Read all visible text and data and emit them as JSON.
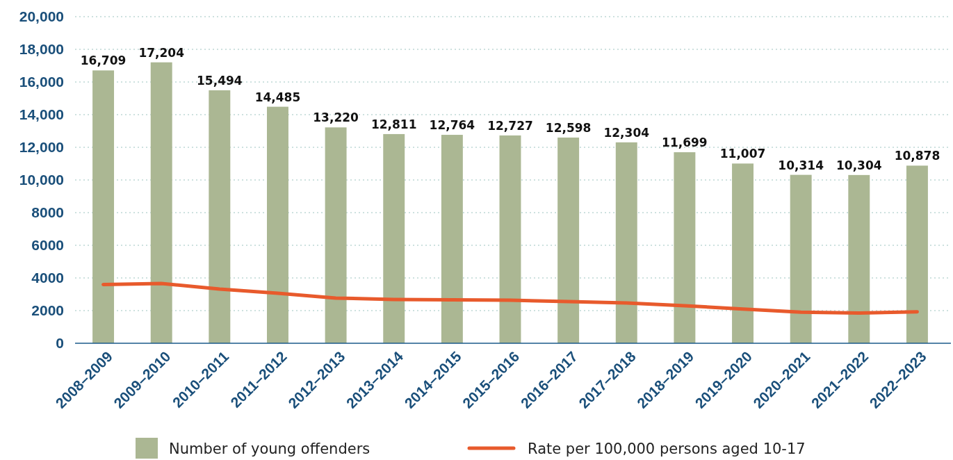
{
  "chart_data": {
    "type": "bar",
    "categories": [
      "2008–2009",
      "2009–2010",
      "2010–2011",
      "2011–2012",
      "2012–2013",
      "2013–2014",
      "2014–2015",
      "2015–2016",
      "2016–2017",
      "2017–2018",
      "2018–2019",
      "2019–2020",
      "2020–2021",
      "2021–2022",
      "2022–2023"
    ],
    "series": [
      {
        "name": "Number of young offenders",
        "color": "#abb793",
        "values": [
          16709,
          17204,
          15494,
          14485,
          13220,
          12811,
          12764,
          12727,
          12598,
          12304,
          11699,
          11007,
          10314,
          10304,
          10878
        ],
        "value_labels": [
          "16,709",
          "17,204",
          "15,494",
          "14,485",
          "13,220",
          "12,811",
          "12,764",
          "12,727",
          "12,598",
          "12,304",
          "11,699",
          "11,007",
          "10,314",
          "10,304",
          "10,878"
        ]
      },
      {
        "name": "Rate per 100,000 persons aged 10-17",
        "type": "line",
        "color": "#e85a2c",
        "values": [
          3600,
          3660,
          3320,
          3060,
          2770,
          2680,
          2660,
          2640,
          2550,
          2470,
          2300,
          2100,
          1900,
          1850,
          1930
        ]
      }
    ],
    "ylim": [
      0,
      20000
    ],
    "yticks": [
      0,
      2000,
      4000,
      6000,
      8000,
      {
        "value": 10000,
        "label": "10,000"
      },
      {
        "value": 12000,
        "label": "12,000"
      },
      {
        "value": 14000,
        "label": "14,000"
      },
      {
        "value": 16000,
        "label": "16,000"
      },
      {
        "value": 18000,
        "label": "18,000"
      },
      {
        "value": 20000,
        "label": "20,000"
      }
    ],
    "grid": "y",
    "legend": "bottom",
    "marker": "none"
  }
}
